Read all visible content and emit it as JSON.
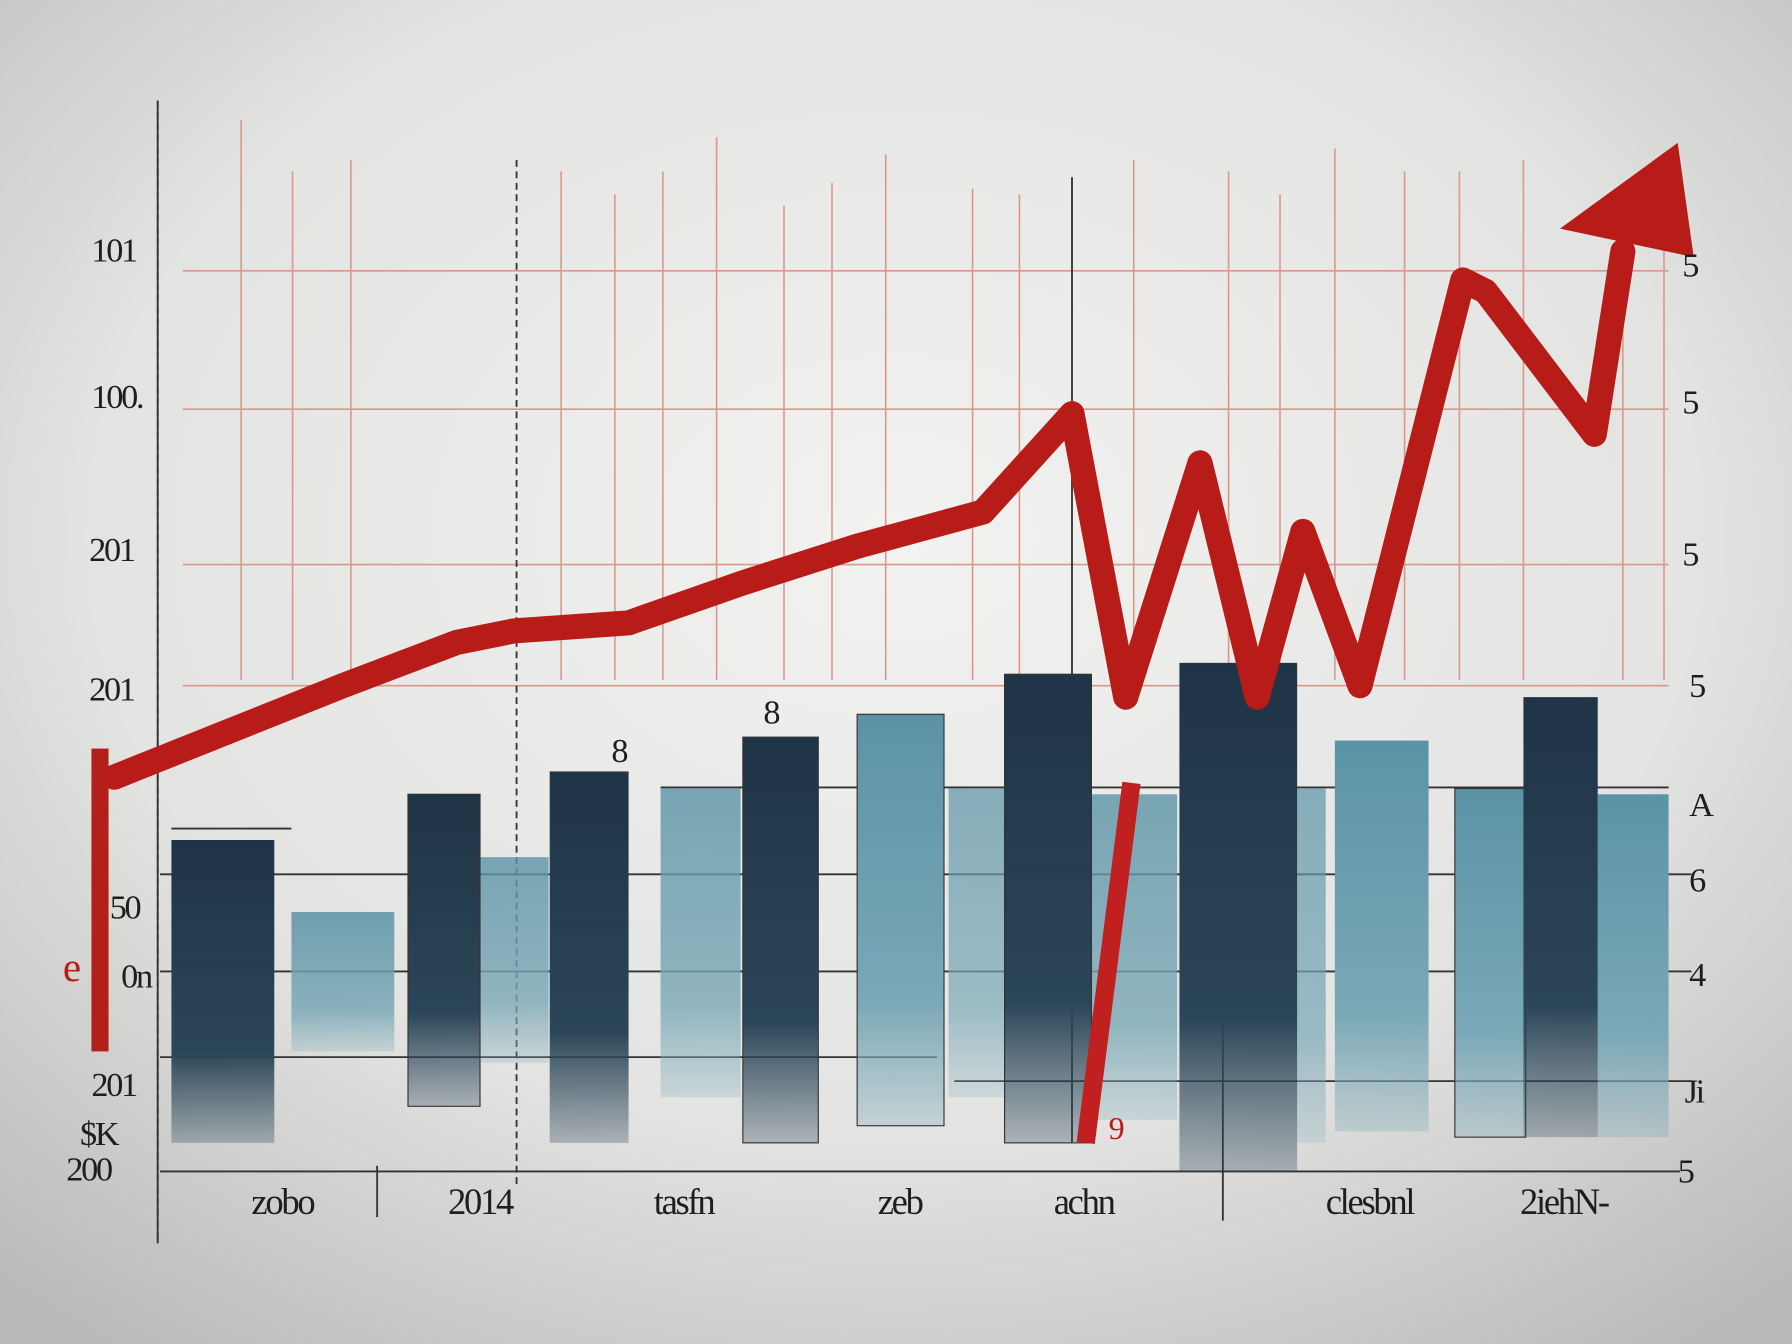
{
  "left_labels": [
    "101",
    "100.",
    "201",
    "201",
    "50",
    "0n",
    "201",
    "$K",
    "200"
  ],
  "left_mark": "e",
  "right_labels": [
    "5",
    "5",
    "5",
    "5",
    "A",
    "6",
    "4",
    "Ji",
    "5"
  ],
  "bottom_labels": [
    "zobo",
    "2014",
    "tasfn",
    "zeb",
    "achn",
    "clesbnl",
    "2iehN-"
  ],
  "annotations": [
    "8",
    "8",
    "9"
  ]
}
